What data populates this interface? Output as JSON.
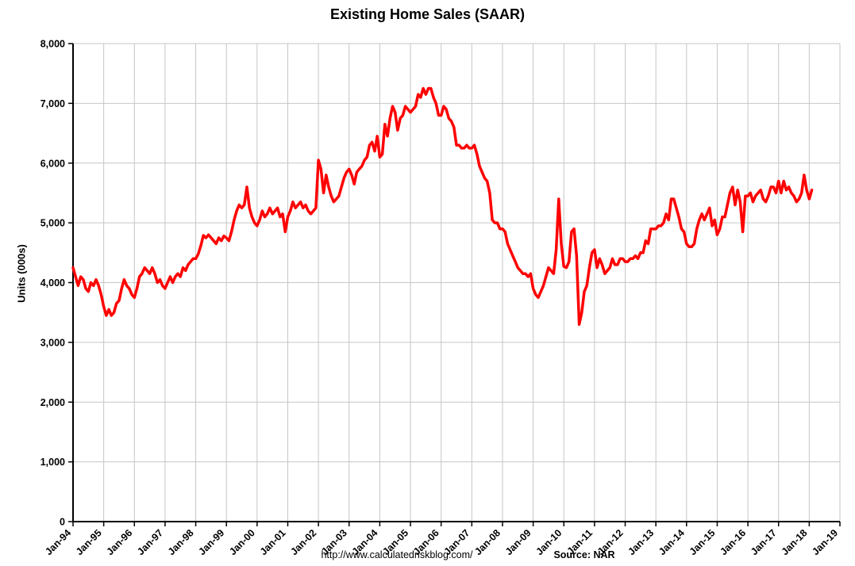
{
  "title": "Existing Home Sales (SAAR)",
  "footer": {
    "url": "http://www.calculatedriskblog.com/",
    "source": "Source: NAR"
  },
  "chart_data": {
    "type": "line",
    "title": "Existing Home Sales (SAAR)",
    "xlabel": "",
    "ylabel": "Units (000s)",
    "ylim": [
      0,
      8000
    ],
    "grid": true,
    "legend": "none",
    "line_color": "#FF0000",
    "grid_color": "#C6C6C6",
    "axis_color": "#000000",
    "background_color": "#FFFFFF",
    "y_ticks": [
      0,
      1000,
      2000,
      3000,
      4000,
      5000,
      6000,
      7000,
      8000
    ],
    "y_tick_labels": [
      "0",
      "1,000",
      "2,000",
      "3,000",
      "4,000",
      "5,000",
      "6,000",
      "7,000",
      "8,000"
    ],
    "x_tick_labels": [
      "Jan-94",
      "Jan-95",
      "Jan-96",
      "Jan-97",
      "Jan-98",
      "Jan-99",
      "Jan-00",
      "Jan-01",
      "Jan-02",
      "Jan-03",
      "Jan-04",
      "Jan-05",
      "Jan-06",
      "Jan-07",
      "Jan-08",
      "Jan-09",
      "Jan-10",
      "Jan-11",
      "Jan-12",
      "Jan-13",
      "Jan-14",
      "Jan-15",
      "Jan-16",
      "Jan-17",
      "Jan-18",
      "Jan-19"
    ],
    "x_total_months": 300,
    "x_start": "Jan-94",
    "frequency": "monthly",
    "series": [
      {
        "name": "Existing Home Sales",
        "values": [
          4250,
          4100,
          3950,
          4100,
          4050,
          3900,
          3850,
          4000,
          3950,
          4050,
          3950,
          3800,
          3600,
          3450,
          3550,
          3450,
          3500,
          3650,
          3700,
          3900,
          4050,
          3950,
          3900,
          3800,
          3750,
          3900,
          4100,
          4150,
          4250,
          4200,
          4150,
          4250,
          4150,
          4000,
          4050,
          3950,
          3900,
          4000,
          4100,
          4000,
          4100,
          4150,
          4100,
          4250,
          4200,
          4300,
          4350,
          4400,
          4400,
          4480,
          4620,
          4790,
          4750,
          4800,
          4750,
          4700,
          4650,
          4750,
          4700,
          4780,
          4750,
          4700,
          4850,
          5050,
          5200,
          5300,
          5250,
          5300,
          5600,
          5250,
          5100,
          5000,
          4950,
          5050,
          5200,
          5100,
          5150,
          5250,
          5150,
          5200,
          5250,
          5100,
          5150,
          4850,
          5100,
          5200,
          5350,
          5250,
          5300,
          5350,
          5250,
          5300,
          5200,
          5150,
          5200,
          5250,
          6050,
          5900,
          5500,
          5800,
          5600,
          5450,
          5350,
          5400,
          5450,
          5600,
          5750,
          5850,
          5900,
          5800,
          5650,
          5850,
          5900,
          5950,
          6050,
          6100,
          6300,
          6350,
          6200,
          6450,
          6100,
          6150,
          6650,
          6450,
          6750,
          6950,
          6850,
          6550,
          6750,
          6800,
          6950,
          6900,
          6850,
          6900,
          6950,
          7150,
          7100,
          7250,
          7150,
          7250,
          7250,
          7100,
          7000,
          6800,
          6800,
          6950,
          6900,
          6750,
          6700,
          6600,
          6300,
          6300,
          6250,
          6250,
          6300,
          6250,
          6250,
          6300,
          6150,
          5950,
          5850,
          5750,
          5700,
          5500,
          5050,
          5000,
          5000,
          4900,
          4900,
          4850,
          4650,
          4550,
          4450,
          4350,
          4250,
          4200,
          4150,
          4150,
          4100,
          4150,
          3900,
          3800,
          3750,
          3850,
          3950,
          4100,
          4250,
          4200,
          4150,
          4550,
          5400,
          4650,
          4270,
          4250,
          4350,
          4850,
          4900,
          4450,
          3300,
          3500,
          3850,
          3950,
          4250,
          4500,
          4550,
          4250,
          4400,
          4300,
          4150,
          4200,
          4250,
          4400,
          4300,
          4300,
          4400,
          4400,
          4350,
          4350,
          4400,
          4400,
          4450,
          4400,
          4500,
          4500,
          4700,
          4650,
          4900,
          4900,
          4900,
          4950,
          4950,
          5000,
          5150,
          5050,
          5400,
          5400,
          5250,
          5100,
          4900,
          4850,
          4650,
          4600,
          4600,
          4650,
          4900,
          5050,
          5150,
          5050,
          5150,
          5250,
          4950,
          5050,
          4800,
          4900,
          5100,
          5100,
          5300,
          5500,
          5600,
          5300,
          5550,
          5350,
          4850,
          5450,
          5450,
          5500,
          5350,
          5450,
          5500,
          5550,
          5400,
          5350,
          5450,
          5600,
          5600,
          5500,
          5700,
          5500,
          5700,
          5550,
          5600,
          5500,
          5450,
          5350,
          5400,
          5500,
          5800,
          5550,
          5400,
          5550
        ]
      }
    ]
  }
}
